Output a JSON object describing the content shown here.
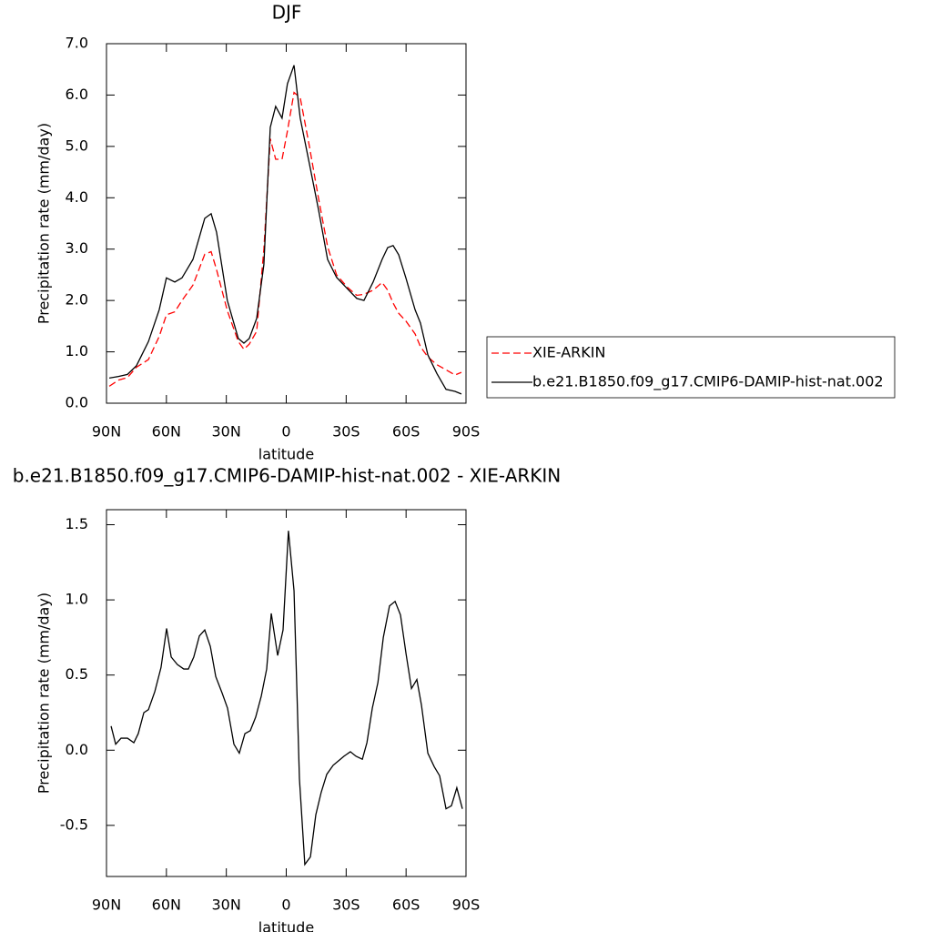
{
  "chart_data": [
    {
      "type": "line",
      "title": "DJF",
      "x_label": "latitude",
      "y_label": "Precipitation rate (mm/day)",
      "xlim": [
        90,
        -90
      ],
      "ylim": [
        0,
        7
      ],
      "xticks": [
        {
          "value": 90,
          "label": "90N"
        },
        {
          "value": 60,
          "label": "60N"
        },
        {
          "value": 30,
          "label": "30N"
        },
        0,
        {
          "value": -30,
          "label": "30S"
        },
        {
          "value": -60,
          "label": "60S"
        },
        {
          "value": -90,
          "label": "90S"
        }
      ],
      "yticks": [
        {
          "value": 0,
          "label": "0.0"
        },
        {
          "value": 1,
          "label": "1.0"
        },
        {
          "value": 2,
          "label": "2.0"
        },
        {
          "value": 3,
          "label": "3.0"
        },
        {
          "value": 4,
          "label": "4.0"
        },
        {
          "value": 5,
          "label": "5.0"
        },
        {
          "value": 6,
          "label": "6.0"
        },
        {
          "value": 7,
          "label": "7.0"
        }
      ],
      "legend": "right",
      "x": [
        88.6,
        84,
        79.5,
        75,
        69,
        63.6,
        60,
        55.8,
        52.2,
        46.7,
        40.8,
        37.6,
        34.9,
        29.5,
        24,
        21.2,
        18.5,
        14.8,
        11.2,
        8,
        5.3,
        2.1,
        -0.6,
        -3.9,
        -7,
        -11.6,
        -16.1,
        -20.7,
        -25.2,
        -30.8,
        -35.3,
        -38.9,
        -43.5,
        -48,
        -50.8,
        -53.5,
        -56.3,
        -59.9,
        -64.5,
        -67.2,
        -70.9,
        -75.4,
        -80,
        -84.5,
        -87.7
      ],
      "series": [
        {
          "name": "XIE-ARKIN",
          "color": "#ff0000",
          "line_style": "dashed",
          "values": [
            0.33,
            0.45,
            0.5,
            0.7,
            0.85,
            1.3,
            1.72,
            1.78,
            2.0,
            2.3,
            2.9,
            2.95,
            2.6,
            1.8,
            1.2,
            1.05,
            1.15,
            1.4,
            3.0,
            5.15,
            4.75,
            4.75,
            5.3,
            6.05,
            5.95,
            5.0,
            4.0,
            3.05,
            2.5,
            2.25,
            2.1,
            2.12,
            2.2,
            2.35,
            2.2,
            1.95,
            1.75,
            1.6,
            1.35,
            1.1,
            0.9,
            0.75,
            0.65,
            0.55,
            0.6
          ]
        },
        {
          "name": "b.e21.B1850.f09_g17.CMIP6-DAMIP-hist-nat.002",
          "color": "#000000",
          "line_style": "solid",
          "values": [
            0.49,
            0.52,
            0.56,
            0.73,
            1.2,
            1.82,
            2.44,
            2.36,
            2.44,
            2.8,
            3.6,
            3.69,
            3.33,
            2.0,
            1.26,
            1.17,
            1.26,
            1.65,
            2.7,
            5.37,
            5.78,
            5.55,
            6.22,
            6.58,
            5.55,
            4.66,
            3.78,
            2.8,
            2.45,
            2.22,
            2.04,
            2.0,
            2.36,
            2.8,
            3.03,
            3.07,
            2.89,
            2.44,
            1.82,
            1.56,
            0.94,
            0.58,
            0.27,
            0.23,
            0.18
          ]
        }
      ]
    },
    {
      "type": "line",
      "title": "b.e21.B1850.f09_g17.CMIP6-DAMIP-hist-nat.002 - XIE-ARKIN",
      "x_label": "latitude",
      "y_label": "Precipitation rate (mm/day)",
      "xlim": [
        90,
        -90
      ],
      "ylim": [
        -0.84,
        1.6
      ],
      "xticks": [
        {
          "value": 90,
          "label": "90N"
        },
        {
          "value": 60,
          "label": "60N"
        },
        {
          "value": 30,
          "label": "30N"
        },
        0,
        {
          "value": -30,
          "label": "30S"
        },
        {
          "value": -60,
          "label": "60S"
        },
        {
          "value": -90,
          "label": "90S"
        }
      ],
      "yticks": [
        -0.5,
        {
          "value": 0,
          "label": "0.0"
        },
        0.5,
        {
          "value": 1,
          "label": "1.0"
        },
        1.5
      ],
      "x": [
        87.7,
        85.4,
        82.7,
        79.5,
        76.3,
        74.1,
        71.3,
        69.0,
        65.8,
        62.7,
        59.9,
        57.6,
        54.5,
        51.3,
        49.0,
        46.3,
        43.5,
        40.8,
        38.0,
        35.3,
        32.1,
        29.4,
        26.2,
        23.5,
        20.7,
        18.0,
        15.3,
        12.5,
        9.8,
        7.5,
        4.3,
        1.6,
        -1.1,
        -3.9,
        -6.6,
        -9.3,
        -12.1,
        -14.8,
        -17.5,
        -20.3,
        -23.5,
        -26.2,
        -28.9,
        -32.1,
        -34.9,
        -38.1,
        -40.4,
        -43.1,
        -45.9,
        -48.6,
        -51.7,
        -54.5,
        -57.2,
        -60.0,
        -62.7,
        -65.4,
        -67.7,
        -70.9,
        -74.1,
        -76.8,
        -80.0,
        -82.7,
        -85.4,
        -88.2
      ],
      "series": [
        {
          "color": "#000000",
          "line_style": "solid",
          "values": [
            0.16,
            0.04,
            0.08,
            0.08,
            0.05,
            0.11,
            0.25,
            0.27,
            0.39,
            0.55,
            0.81,
            0.62,
            0.57,
            0.54,
            0.54,
            0.62,
            0.76,
            0.8,
            0.69,
            0.49,
            0.38,
            0.28,
            0.04,
            -0.02,
            0.11,
            0.13,
            0.22,
            0.36,
            0.54,
            0.91,
            0.63,
            0.8,
            1.46,
            1.06,
            -0.19,
            -0.76,
            -0.71,
            -0.43,
            -0.28,
            -0.16,
            -0.1,
            -0.07,
            -0.04,
            -0.01,
            -0.04,
            -0.06,
            0.05,
            0.28,
            0.45,
            0.75,
            0.96,
            0.99,
            0.9,
            0.64,
            0.41,
            0.47,
            0.3,
            -0.02,
            -0.11,
            -0.17,
            -0.39,
            -0.37,
            -0.25,
            -0.39
          ]
        }
      ]
    }
  ]
}
